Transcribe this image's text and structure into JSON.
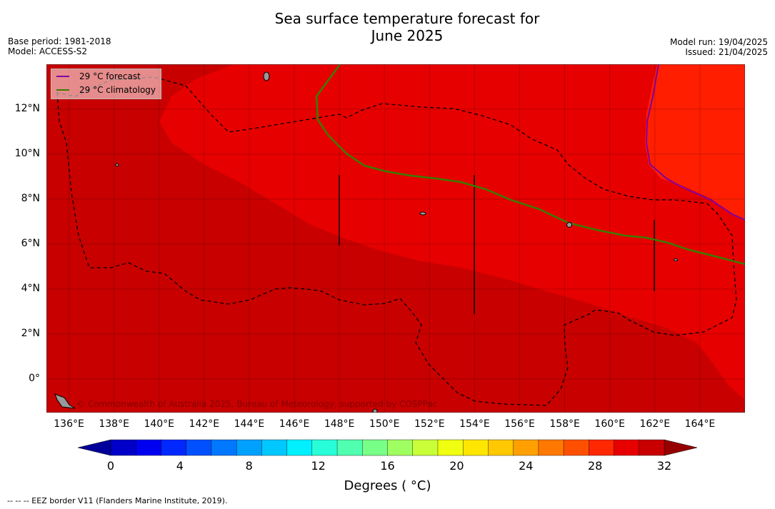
{
  "title_line1": "Sea surface temperature forecast for",
  "title_line2": "June 2025",
  "meta": {
    "base_period": "Base period: 1981-2018",
    "model": "Model: ACCESS-S2",
    "model_run": "Model run: 19/04/2025",
    "issued": "Issued: 21/04/2025"
  },
  "map": {
    "lon_range": [
      135,
      166
    ],
    "lat_range": [
      -1.5,
      14
    ],
    "lat_ticks": [
      {
        "v": 12,
        "t": "12°N"
      },
      {
        "v": 10,
        "t": "10°N"
      },
      {
        "v": 8,
        "t": "8°N"
      },
      {
        "v": 6,
        "t": "6°N"
      },
      {
        "v": 4,
        "t": "4°N"
      },
      {
        "v": 2,
        "t": "2°N"
      },
      {
        "v": 0,
        "t": "0°"
      }
    ],
    "lon_ticks": [
      {
        "v": 136,
        "t": "136°E"
      },
      {
        "v": 138,
        "t": "138°E"
      },
      {
        "v": 140,
        "t": "140°E"
      },
      {
        "v": 142,
        "t": "142°E"
      },
      {
        "v": 144,
        "t": "144°E"
      },
      {
        "v": 146,
        "t": "146°E"
      },
      {
        "v": 148,
        "t": "148°E"
      },
      {
        "v": 150,
        "t": "150°E"
      },
      {
        "v": 152,
        "t": "152°E"
      },
      {
        "v": 154,
        "t": "154°E"
      },
      {
        "v": 156,
        "t": "156°E"
      },
      {
        "v": 158,
        "t": "158°E"
      },
      {
        "v": 160,
        "t": "160°E"
      },
      {
        "v": 162,
        "t": "162°E"
      },
      {
        "v": 164,
        "t": "164°E"
      }
    ],
    "colors": {
      "band_28_29": "#c80000",
      "band_29_30": "#e60000",
      "band_30_31": "#ff1e00",
      "forecast_line": "#8000a0",
      "climatology_line": "#3a7d00"
    }
  },
  "legend": {
    "forecast": "29 °C  forecast",
    "climatology": "29 °C  climatology"
  },
  "copyright": "© Commonwealth of Australia 2025, Bureau of Meteorology, supported by COSPPac",
  "colorbar": {
    "min": 0,
    "max": 32,
    "tick_values": [
      0,
      4,
      8,
      12,
      16,
      20,
      24,
      28,
      32
    ],
    "label": "Degrees ( °C)",
    "colors": [
      "#00009a",
      "#0000c8",
      "#0000f0",
      "#0028ff",
      "#0050ff",
      "#0078ff",
      "#00a0ff",
      "#00c8ff",
      "#00f0ff",
      "#28ffd8",
      "#50ffb0",
      "#78ff88",
      "#a0ff60",
      "#c8ff38",
      "#f0ff10",
      "#ffe600",
      "#ffc800",
      "#ffa000",
      "#ff7800",
      "#ff5000",
      "#ff2800",
      "#e60000",
      "#c80000",
      "#960000"
    ]
  },
  "footnote": "--  --  -- EEZ border V11 (Flanders Marine Institute, 2019)."
}
